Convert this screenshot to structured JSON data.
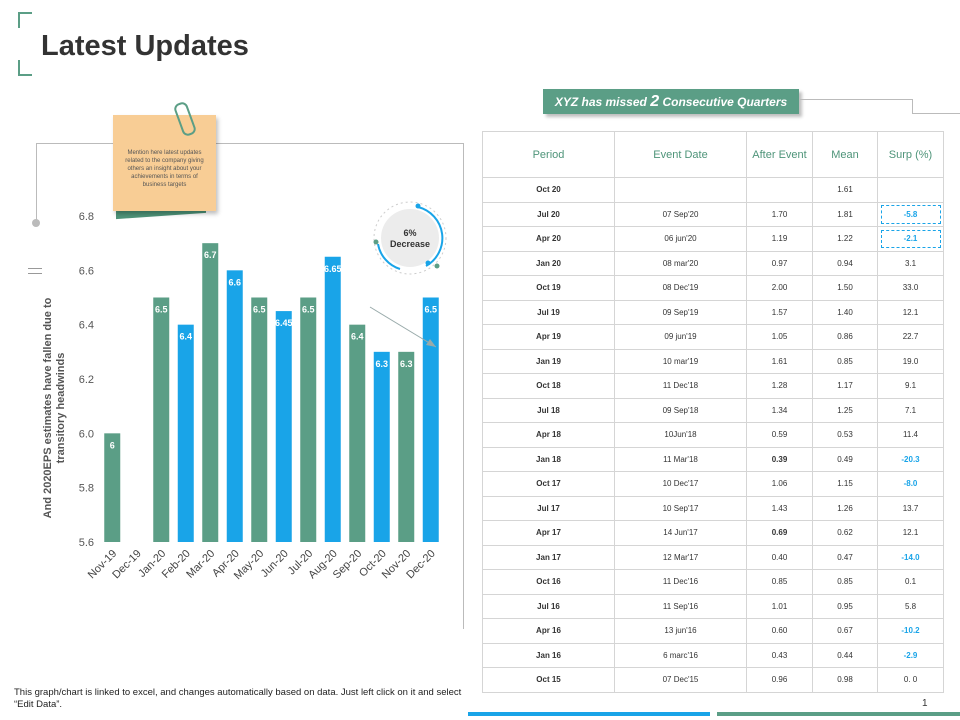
{
  "header": {
    "title": "Latest Updates"
  },
  "note": {
    "text": "Mention here latest updates related to the company giving others an insight about your achievements in terms of business targets"
  },
  "badge": {
    "percent": "6%",
    "label": "Decrease"
  },
  "banner": {
    "prefix": "XYZ has missed",
    "number": "2",
    "suffix": "Consecutive Quarters"
  },
  "colors": {
    "green": "#5b9e86",
    "blue": "#19a4e8",
    "sticky": "#f8cd95"
  },
  "chart_data": {
    "type": "bar",
    "ylabel": "And 2020EPS estimates have fallen due to transitory headwinds",
    "ylim": [
      5.6,
      6.8
    ],
    "yticks": [
      "5.6",
      "5.8",
      "6.0",
      "6.2",
      "6.4",
      "6.6",
      "6.8"
    ],
    "categories": [
      "Nov-19",
      "Dec-19",
      "Jan-20",
      "Feb-20",
      "Mar-20",
      "Apr-20",
      "May-20",
      "Jun-20",
      "Jul-20",
      "Aug-20",
      "Sep-20",
      "Oct-20",
      "Nov-20",
      "Dec-20"
    ],
    "values": [
      6,
      null,
      6.5,
      6.4,
      6.7,
      6.6,
      6.5,
      6.45,
      6.5,
      6.65,
      6.4,
      6.3,
      6.3,
      6.5
    ],
    "labels": [
      "6",
      "",
      "6.5",
      "6.4",
      "6.7",
      "6.6",
      "6.5",
      "6.45",
      "6.5",
      "6.65",
      "6.4",
      "6.3",
      "6.3",
      "6.5"
    ],
    "bar_colors": [
      "#5b9e86",
      "#5b9e86",
      "#5b9e86",
      "#19a4e8",
      "#5b9e86",
      "#19a4e8",
      "#5b9e86",
      "#19a4e8",
      "#5b9e86",
      "#19a4e8",
      "#5b9e86",
      "#19a4e8",
      "#5b9e86",
      "#19a4e8"
    ],
    "grid": false,
    "legend": "none"
  },
  "table": {
    "headers": [
      "Period",
      "Event Date",
      "After Event",
      "Mean",
      "Surp (%)"
    ],
    "rows": [
      {
        "period": "Oct 20",
        "date": "",
        "after": "",
        "mean": "1.61",
        "surp": "",
        "neg": false,
        "dashed": false,
        "after_bold": false
      },
      {
        "period": "Jul 20",
        "date": "07 Sep'20",
        "after": "1.70",
        "mean": "1.81",
        "surp": "-5.8",
        "neg": true,
        "dashed": true,
        "after_bold": false
      },
      {
        "period": "Apr 20",
        "date": "06 jun'20",
        "after": "1.19",
        "mean": "1.22",
        "surp": "-2.1",
        "neg": true,
        "dashed": true,
        "after_bold": false
      },
      {
        "period": "Jan 20",
        "date": "08 mar'20",
        "after": "0.97",
        "mean": "0.94",
        "surp": "3.1",
        "neg": false,
        "dashed": false,
        "after_bold": false
      },
      {
        "period": "Oct 19",
        "date": "08 Dec'19",
        "after": "2.00",
        "mean": "1.50",
        "surp": "33.0",
        "neg": false,
        "dashed": false,
        "after_bold": false
      },
      {
        "period": "Jul 19",
        "date": "09 Sep'19",
        "after": "1.57",
        "mean": "1.40",
        "surp": "12.1",
        "neg": false,
        "dashed": false,
        "after_bold": false
      },
      {
        "period": "Apr 19",
        "date": "09 jun'19",
        "after": "1.05",
        "mean": "0.86",
        "surp": "22.7",
        "neg": false,
        "dashed": false,
        "after_bold": false
      },
      {
        "period": "Jan 19",
        "date": "10 mar'19",
        "after": "1.61",
        "mean": "0.85",
        "surp": "19.0",
        "neg": false,
        "dashed": false,
        "after_bold": false
      },
      {
        "period": "Oct 18",
        "date": "11 Dec'18",
        "after": "1.28",
        "mean": "1.17",
        "surp": "9.1",
        "neg": false,
        "dashed": false,
        "after_bold": false
      },
      {
        "period": "Jul 18",
        "date": "09 Sep'18",
        "after": "1.34",
        "mean": "1.25",
        "surp": "7.1",
        "neg": false,
        "dashed": false,
        "after_bold": false
      },
      {
        "period": "Apr 18",
        "date": "10Jun'18",
        "after": "0.59",
        "mean": "0.53",
        "surp": "11.4",
        "neg": false,
        "dashed": false,
        "after_bold": false
      },
      {
        "period": "Jan 18",
        "date": "11 Mar'18",
        "after": "0.39",
        "mean": "0.49",
        "surp": "-20.3",
        "neg": true,
        "dashed": false,
        "after_bold": true
      },
      {
        "period": "Oct 17",
        "date": "10 Dec'17",
        "after": "1.06",
        "mean": "1.15",
        "surp": "-8.0",
        "neg": true,
        "dashed": false,
        "after_bold": false
      },
      {
        "period": "Jul 17",
        "date": "10 Sep'17",
        "after": "1.43",
        "mean": "1.26",
        "surp": "13.7",
        "neg": false,
        "dashed": false,
        "after_bold": false
      },
      {
        "period": "Apr 17",
        "date": "14 Jun'17",
        "after": "0.69",
        "mean": "0.62",
        "surp": "12.1",
        "neg": false,
        "dashed": false,
        "after_bold": true
      },
      {
        "period": "Jan 17",
        "date": "12 Mar'17",
        "after": "0.40",
        "mean": "0.47",
        "surp": "-14.0",
        "neg": true,
        "dashed": false,
        "after_bold": false
      },
      {
        "period": "Oct 16",
        "date": "11 Dec'16",
        "after": "0.85",
        "mean": "0.85",
        "surp": "0.1",
        "neg": false,
        "dashed": false,
        "after_bold": false
      },
      {
        "period": "Jul 16",
        "date": "11 Sep'16",
        "after": "1.01",
        "mean": "0.95",
        "surp": "5.8",
        "neg": false,
        "dashed": false,
        "after_bold": false
      },
      {
        "period": "Apr 16",
        "date": "13 jun'16",
        "after": "0.60",
        "mean": "0.67",
        "surp": "-10.2",
        "neg": true,
        "dashed": false,
        "after_bold": false
      },
      {
        "period": "Jan 16",
        "date": "6 marc'16",
        "after": "0.43",
        "mean": "0.44",
        "surp": "-2.9",
        "neg": true,
        "dashed": false,
        "after_bold": false
      },
      {
        "period": "Oct 15",
        "date": "07 Dec'15",
        "after": "0.96",
        "mean": "0.98",
        "surp": "0. 0",
        "neg": false,
        "dashed": false,
        "after_bold": false
      }
    ]
  },
  "footer": {
    "note": "This graph/chart is linked to excel, and changes automatically based on data. Just left click on it and select “Edit Data”.",
    "page": "1"
  }
}
